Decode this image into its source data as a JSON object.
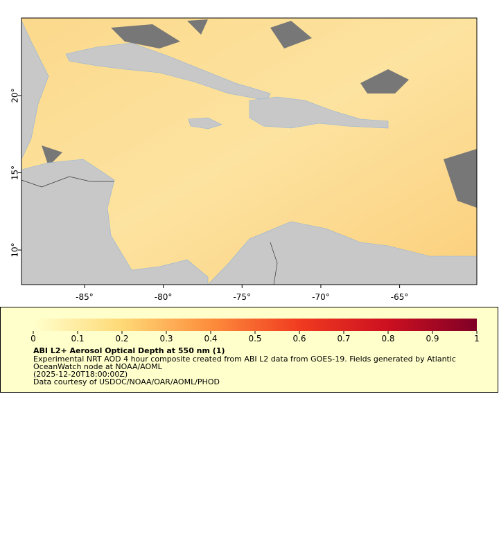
{
  "map": {
    "xlim": [
      -89,
      -60.1
    ],
    "ylim": [
      7.76,
      25.02
    ],
    "xticks": [
      {
        "value": -85,
        "label": "-85°"
      },
      {
        "value": -80,
        "label": "-80°"
      },
      {
        "value": -75,
        "label": "-75°"
      },
      {
        "value": -70,
        "label": "-70°"
      },
      {
        "value": -65,
        "label": "-65°"
      }
    ],
    "yticks": [
      {
        "value": 10,
        "label": "10°"
      },
      {
        "value": 15,
        "label": "15°"
      },
      {
        "value": 20,
        "label": "20°"
      }
    ]
  },
  "colorbar": {
    "lim": [
      0,
      1
    ],
    "ticks": [
      0,
      0.1,
      0.2,
      0.3,
      0.4,
      0.5,
      0.6,
      0.7,
      0.8,
      0.9,
      1
    ]
  },
  "legend": {
    "title": "ABI L2+ Aerosol Optical Depth at 550 nm (1)",
    "lines": [
      "Experimental NRT AOD 4 hour composite created from ABI L2 data from GOES-19. Fields generated by Atlantic",
      "OceanWatch node at NOAA/AOML",
      "(2025-12-20T18:00:00Z)",
      "Data courtesy of USDOC/NOAA/OAR/AOML/PHOD"
    ]
  }
}
